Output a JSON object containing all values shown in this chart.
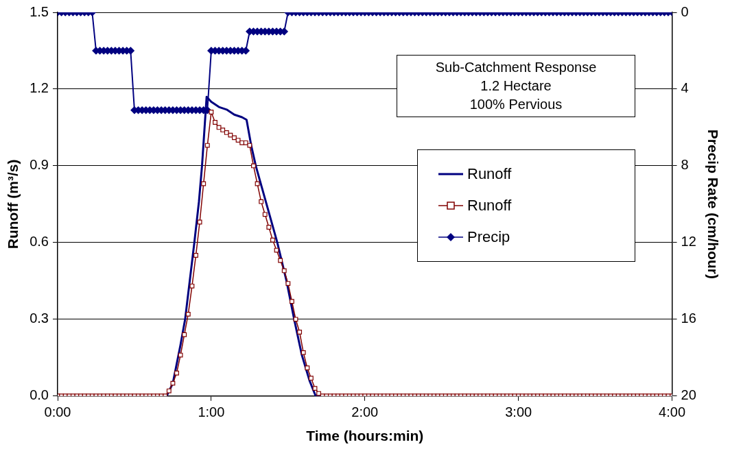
{
  "chart_data": {
    "type": "line",
    "xlabel": "Time (hours:min)",
    "ylabel": "Runoff (m³/s)",
    "y2label": "Precip Rate (cm/hour)",
    "annotations": [
      "Sub-Catchment Response",
      "1.2 Hectare",
      "100% Pervious"
    ],
    "x": [
      0,
      0.025,
      0.05,
      0.075,
      0.1,
      0.125,
      0.15,
      0.175,
      0.2,
      0.225,
      0.25,
      0.275,
      0.3,
      0.325,
      0.35,
      0.375,
      0.4,
      0.425,
      0.45,
      0.475,
      0.5,
      0.525,
      0.55,
      0.575,
      0.6,
      0.625,
      0.65,
      0.675,
      0.7,
      0.725,
      0.75,
      0.775,
      0.8,
      0.825,
      0.85,
      0.875,
      0.9,
      0.925,
      0.95,
      0.975,
      1,
      1.025,
      1.05,
      1.075,
      1.1,
      1.125,
      1.15,
      1.175,
      1.2,
      1.225,
      1.25,
      1.275,
      1.3,
      1.325,
      1.35,
      1.375,
      1.4,
      1.425,
      1.45,
      1.475,
      1.5,
      1.525,
      1.55,
      1.575,
      1.6,
      1.625,
      1.65,
      1.675,
      1.7,
      1.725,
      1.75,
      1.775,
      1.8,
      1.825,
      1.85,
      1.875,
      1.9,
      1.925,
      1.95,
      1.975,
      2,
      2.025,
      2.05,
      2.075,
      2.1,
      2.125,
      2.15,
      2.175,
      2.2,
      2.225,
      2.25,
      2.275,
      2.3,
      2.325,
      2.35,
      2.375,
      2.4,
      2.425,
      2.45,
      2.475,
      2.5,
      2.525,
      2.55,
      2.575,
      2.6,
      2.625,
      2.65,
      2.675,
      2.7,
      2.725,
      2.75,
      2.775,
      2.8,
      2.825,
      2.85,
      2.875,
      2.9,
      2.925,
      2.95,
      2.975,
      3,
      3.025,
      3.05,
      3.075,
      3.1,
      3.125,
      3.15,
      3.175,
      3.2,
      3.225,
      3.25,
      3.275,
      3.3,
      3.325,
      3.35,
      3.375,
      3.4,
      3.425,
      3.45,
      3.475,
      3.5,
      3.525,
      3.55,
      3.575,
      3.6,
      3.625,
      3.65,
      3.675,
      3.7,
      3.725,
      3.75,
      3.775,
      3.8,
      3.825,
      3.85,
      3.875,
      3.9,
      3.925,
      3.95,
      3.975,
      4
    ],
    "series": [
      {
        "name": "Runoff",
        "color": "#000080",
        "marker": "none",
        "x": [
          0,
          0.71,
          0.75,
          0.8,
          0.83,
          0.86,
          0.89,
          0.92,
          0.94,
          0.97,
          1.0,
          1.05,
          1.1,
          1.15,
          1.2,
          1.23,
          1.26,
          1.29,
          1.36,
          1.43,
          1.49,
          1.54,
          1.59,
          1.64,
          1.68,
          4
        ],
        "values": [
          0,
          0,
          0.05,
          0.2,
          0.3,
          0.45,
          0.6,
          0.76,
          0.9,
          1.17,
          1.15,
          1.13,
          1.12,
          1.1,
          1.09,
          1.08,
          0.98,
          0.9,
          0.75,
          0.6,
          0.45,
          0.3,
          0.16,
          0.06,
          0,
          0
        ]
      },
      {
        "name": "Runoff",
        "color": "#800000",
        "marker": "square",
        "values": [
          0,
          0,
          0,
          0,
          0,
          0,
          0,
          0,
          0,
          0,
          0,
          0,
          0,
          0,
          0,
          0,
          0,
          0,
          0,
          0,
          0,
          0,
          0,
          0,
          0,
          0,
          0,
          0,
          0,
          0.02,
          0.05,
          0.09,
          0.16,
          0.24,
          0.32,
          0.43,
          0.55,
          0.68,
          0.83,
          0.98,
          1.11,
          1.07,
          1.05,
          1.04,
          1.03,
          1.02,
          1.01,
          1.0,
          0.99,
          0.99,
          0.98,
          0.9,
          0.83,
          0.76,
          0.71,
          0.66,
          0.61,
          0.57,
          0.53,
          0.49,
          0.44,
          0.37,
          0.3,
          0.25,
          0.17,
          0.11,
          0.07,
          0.03,
          0.01,
          0,
          0,
          0,
          0,
          0,
          0,
          0,
          0,
          0,
          0,
          0,
          0,
          0,
          0,
          0,
          0,
          0,
          0,
          0,
          0,
          0,
          0,
          0,
          0,
          0,
          0,
          0,
          0,
          0,
          0,
          0,
          0,
          0,
          0,
          0,
          0,
          0,
          0,
          0,
          0,
          0,
          0,
          0,
          0,
          0,
          0,
          0,
          0,
          0,
          0,
          0,
          0,
          0,
          0,
          0,
          0,
          0,
          0,
          0,
          0,
          0,
          0,
          0,
          0,
          0,
          0,
          0,
          0,
          0,
          0,
          0,
          0,
          0,
          0,
          0,
          0,
          0,
          0,
          0,
          0,
          0,
          0,
          0,
          0,
          0,
          0,
          0,
          0,
          0,
          0,
          0,
          0
        ]
      },
      {
        "name": "Precip",
        "color": "#000080",
        "marker": "diamond",
        "axis": "y2",
        "values": [
          0,
          0,
          0,
          0,
          0,
          0,
          0,
          0,
          0,
          0,
          2,
          2,
          2,
          2,
          2,
          2,
          2,
          2,
          2,
          2,
          5.1,
          5.1,
          5.1,
          5.1,
          5.1,
          5.1,
          5.1,
          5.1,
          5.1,
          5.1,
          5.1,
          5.1,
          5.1,
          5.1,
          5.1,
          5.1,
          5.1,
          5.1,
          5.1,
          5.1,
          2,
          2,
          2,
          2,
          2,
          2,
          2,
          2,
          2,
          2,
          1,
          1,
          1,
          1,
          1,
          1,
          1,
          1,
          1,
          1,
          0,
          0,
          0,
          0,
          0,
          0,
          0,
          0,
          0,
          0,
          0,
          0,
          0,
          0,
          0,
          0,
          0,
          0,
          0,
          0,
          0,
          0,
          0,
          0,
          0,
          0,
          0,
          0,
          0,
          0,
          0,
          0,
          0,
          0,
          0,
          0,
          0,
          0,
          0,
          0,
          0,
          0,
          0,
          0,
          0,
          0,
          0,
          0,
          0,
          0,
          0,
          0,
          0,
          0,
          0,
          0,
          0,
          0,
          0,
          0,
          0,
          0,
          0,
          0,
          0,
          0,
          0,
          0,
          0,
          0,
          0,
          0,
          0,
          0,
          0,
          0,
          0,
          0,
          0,
          0,
          0,
          0,
          0,
          0,
          0,
          0,
          0,
          0,
          0,
          0,
          0,
          0,
          0,
          0,
          0,
          0,
          0,
          0,
          0,
          0,
          0
        ]
      }
    ],
    "xlim": [
      0,
      4
    ],
    "xticks": [
      {
        "value": 0,
        "label": "0:00"
      },
      {
        "value": 1,
        "label": "1:00"
      },
      {
        "value": 2,
        "label": "2:00"
      },
      {
        "value": 3,
        "label": "3:00"
      },
      {
        "value": 4,
        "label": "4:00"
      }
    ],
    "ylim": [
      0,
      1.5
    ],
    "yticks": [
      {
        "value": 0,
        "label": "0.0"
      },
      0.3,
      0.6,
      0.9,
      1.2,
      1.5
    ],
    "y2lim": [
      20,
      0
    ],
    "y2ticks": [
      0,
      4,
      8,
      12,
      16,
      20
    ],
    "grid": "y",
    "legend": "right"
  }
}
